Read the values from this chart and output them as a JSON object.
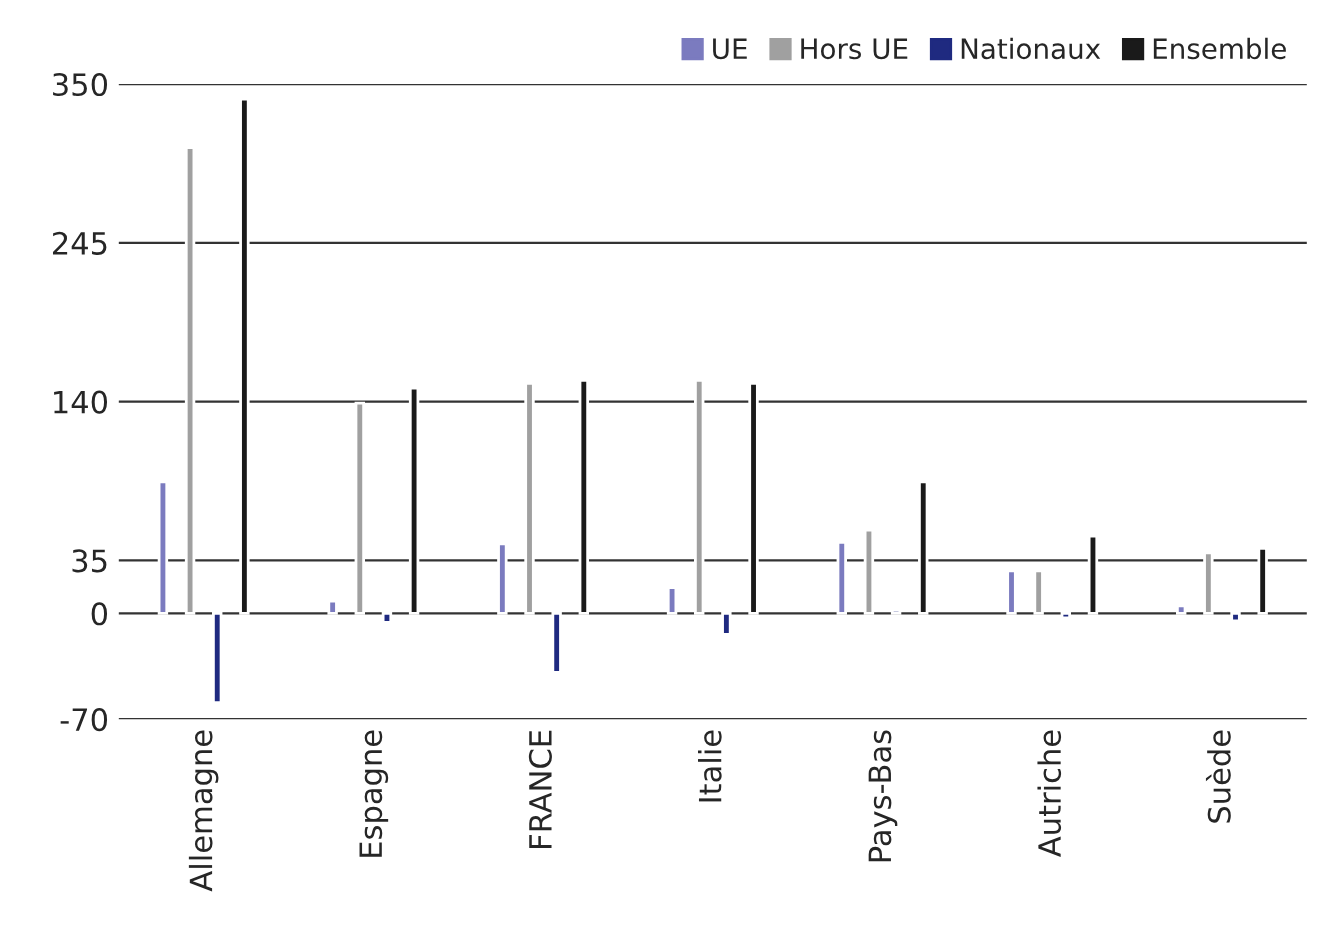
{
  "chart_data": {
    "type": "bar",
    "categories": [
      "Allemagne",
      "Espagne",
      "FRANCE",
      "Italie",
      "Pays-Bas",
      "Autriche",
      "Suède"
    ],
    "series": [
      {
        "name": "UE",
        "color": "#7b7bbf",
        "values": [
          87,
          8,
          46,
          17,
          47,
          28,
          5
        ]
      },
      {
        "name": "Hors UE",
        "color": "#a0a0a0",
        "values": [
          308,
          139,
          152,
          154,
          55,
          28,
          40
        ]
      },
      {
        "name": "Nationaux",
        "color": "#1f2a80",
        "values": [
          -59,
          -6,
          -39,
          -14,
          2,
          -3,
          -5
        ]
      },
      {
        "name": "Ensemble",
        "color": "#1a1a1a",
        "values": [
          340,
          149,
          154,
          152,
          87,
          51,
          43
        ]
      }
    ],
    "ylim": [
      -70,
      350
    ],
    "yticks": [
      -70,
      0,
      35,
      140,
      245,
      350
    ],
    "grid": "y",
    "legend": "top right"
  }
}
